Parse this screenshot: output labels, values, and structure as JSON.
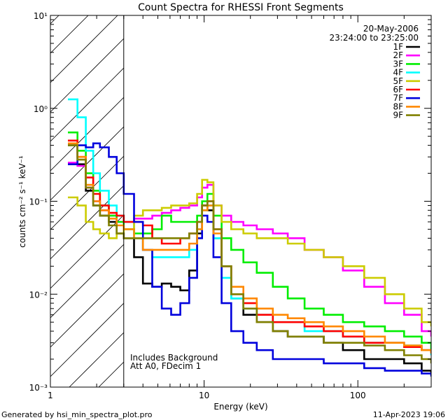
{
  "chart_data": {
    "type": "line",
    "title": "Count Spectra for RHESSI Front Segments",
    "xlabel": "Energy (keV)",
    "ylabel": "counts cm⁻² s⁻¹ keV⁻¹",
    "xscale": "log",
    "yscale": "log",
    "xlim": [
      1,
      300
    ],
    "ylim": [
      0.001,
      10
    ],
    "x_tick_labels": [
      {
        "value": 1,
        "label": "1"
      },
      {
        "value": 10,
        "label": "10"
      },
      {
        "value": 100,
        "label": "100"
      }
    ],
    "y_tick_labels": [
      {
        "exp": -3,
        "label": "10⁻³"
      },
      {
        "exp": -2,
        "label": "10⁻²"
      },
      {
        "exp": -1,
        "label": "10⁻¹"
      },
      {
        "exp": 0,
        "label": "10⁰"
      },
      {
        "exp": 1,
        "label": "10¹"
      }
    ],
    "hatched_region_xmax": 3,
    "legend_header": [
      "20-May-2006",
      "23:24:00 to 23:25:00"
    ],
    "legend_position": "top-right",
    "annotations": [
      "Includes Background",
      "Att A0, FDecim 1"
    ],
    "series": [
      {
        "name": "1F",
        "color": "#000000",
        "points": [
          [
            1.3,
            0.4
          ],
          [
            1.5,
            0.25
          ],
          [
            1.7,
            0.13
          ],
          [
            1.9,
            0.09
          ],
          [
            2.1,
            0.07
          ],
          [
            2.4,
            0.06
          ],
          [
            2.7,
            0.045
          ],
          [
            3.0,
            0.04
          ],
          [
            3.5,
            0.025
          ],
          [
            4.0,
            0.013
          ],
          [
            4.6,
            0.012
          ],
          [
            5.3,
            0.013
          ],
          [
            6.1,
            0.012
          ],
          [
            7.0,
            0.011
          ],
          [
            8.0,
            0.018
          ],
          [
            9.0,
            0.045
          ],
          [
            9.7,
            0.09
          ],
          [
            10.5,
            0.08
          ],
          [
            11.5,
            0.04
          ],
          [
            13,
            0.02
          ],
          [
            15,
            0.009
          ],
          [
            18,
            0.006
          ],
          [
            22,
            0.005
          ],
          [
            28,
            0.004
          ],
          [
            35,
            0.0035
          ],
          [
            45,
            0.0035
          ],
          [
            60,
            0.003
          ],
          [
            80,
            0.0025
          ],
          [
            110,
            0.002
          ],
          [
            150,
            0.002
          ],
          [
            200,
            0.0018
          ],
          [
            260,
            0.0015
          ],
          [
            300,
            0.0014
          ]
        ]
      },
      {
        "name": "2F",
        "color": "#ff00ff",
        "points": [
          [
            1.3,
            0.26
          ],
          [
            1.5,
            0.24
          ],
          [
            1.7,
            0.14
          ],
          [
            1.9,
            0.1
          ],
          [
            2.1,
            0.08
          ],
          [
            2.4,
            0.07
          ],
          [
            2.7,
            0.06
          ],
          [
            3.0,
            0.06
          ],
          [
            3.5,
            0.065
          ],
          [
            4.0,
            0.065
          ],
          [
            4.6,
            0.07
          ],
          [
            5.3,
            0.075
          ],
          [
            6.1,
            0.08
          ],
          [
            7.0,
            0.085
          ],
          [
            8.0,
            0.09
          ],
          [
            9.0,
            0.11
          ],
          [
            9.7,
            0.14
          ],
          [
            10.5,
            0.15
          ],
          [
            11.5,
            0.09
          ],
          [
            13,
            0.07
          ],
          [
            15,
            0.06
          ],
          [
            18,
            0.055
          ],
          [
            22,
            0.05
          ],
          [
            28,
            0.045
          ],
          [
            35,
            0.04
          ],
          [
            45,
            0.03
          ],
          [
            60,
            0.025
          ],
          [
            80,
            0.018
          ],
          [
            110,
            0.012
          ],
          [
            150,
            0.008
          ],
          [
            200,
            0.006
          ],
          [
            260,
            0.004
          ],
          [
            300,
            0.0035
          ]
        ]
      },
      {
        "name": "3F",
        "color": "#00ee00",
        "points": [
          [
            1.3,
            0.55
          ],
          [
            1.5,
            0.35
          ],
          [
            1.7,
            0.2
          ],
          [
            1.9,
            0.13
          ],
          [
            2.1,
            0.09
          ],
          [
            2.4,
            0.07
          ],
          [
            2.7,
            0.06
          ],
          [
            3.0,
            0.05
          ],
          [
            3.5,
            0.045
          ],
          [
            4.0,
            0.045
          ],
          [
            4.6,
            0.05
          ],
          [
            5.3,
            0.07
          ],
          [
            6.1,
            0.06
          ],
          [
            7.0,
            0.06
          ],
          [
            8.0,
            0.06
          ],
          [
            9.0,
            0.07
          ],
          [
            9.7,
            0.1
          ],
          [
            10.5,
            0.12
          ],
          [
            11.5,
            0.07
          ],
          [
            13,
            0.04
          ],
          [
            15,
            0.03
          ],
          [
            18,
            0.022
          ],
          [
            22,
            0.017
          ],
          [
            28,
            0.012
          ],
          [
            35,
            0.009
          ],
          [
            45,
            0.007
          ],
          [
            60,
            0.006
          ],
          [
            80,
            0.005
          ],
          [
            110,
            0.0045
          ],
          [
            150,
            0.004
          ],
          [
            200,
            0.0035
          ],
          [
            260,
            0.003
          ],
          [
            300,
            0.0025
          ]
        ]
      },
      {
        "name": "4F",
        "color": "#00ffff",
        "points": [
          [
            1.3,
            1.25
          ],
          [
            1.5,
            0.8
          ],
          [
            1.7,
            0.35
          ],
          [
            1.9,
            0.2
          ],
          [
            2.1,
            0.13
          ],
          [
            2.4,
            0.09
          ],
          [
            2.7,
            0.07
          ],
          [
            3.0,
            0.06
          ],
          [
            3.5,
            0.04
          ],
          [
            4.0,
            0.03
          ],
          [
            4.6,
            0.025
          ],
          [
            5.3,
            0.025
          ],
          [
            6.1,
            0.025
          ],
          [
            7.0,
            0.025
          ],
          [
            8.0,
            0.03
          ],
          [
            9.0,
            0.05
          ],
          [
            9.7,
            0.08
          ],
          [
            10.5,
            0.09
          ],
          [
            11.5,
            0.04
          ],
          [
            13,
            0.015
          ],
          [
            15,
            0.009
          ],
          [
            18,
            0.007
          ],
          [
            22,
            0.006
          ],
          [
            28,
            0.005
          ],
          [
            35,
            0.005
          ],
          [
            45,
            0.004
          ],
          [
            60,
            0.004
          ],
          [
            80,
            0.0035
          ],
          [
            110,
            0.003
          ],
          [
            150,
            0.003
          ],
          [
            200,
            0.0028
          ],
          [
            260,
            0.0025
          ],
          [
            300,
            0.0022
          ]
        ]
      },
      {
        "name": "5F",
        "color": "#cccc00",
        "points": [
          [
            1.3,
            0.11
          ],
          [
            1.5,
            0.09
          ],
          [
            1.7,
            0.06
          ],
          [
            1.9,
            0.05
          ],
          [
            2.1,
            0.045
          ],
          [
            2.4,
            0.04
          ],
          [
            2.7,
            0.045
          ],
          [
            3.0,
            0.05
          ],
          [
            3.5,
            0.07
          ],
          [
            4.0,
            0.08
          ],
          [
            4.6,
            0.08
          ],
          [
            5.3,
            0.085
          ],
          [
            6.1,
            0.09
          ],
          [
            7.0,
            0.09
          ],
          [
            8.0,
            0.095
          ],
          [
            9.0,
            0.12
          ],
          [
            9.7,
            0.17
          ],
          [
            10.5,
            0.16
          ],
          [
            11.5,
            0.09
          ],
          [
            13,
            0.06
          ],
          [
            15,
            0.05
          ],
          [
            18,
            0.045
          ],
          [
            22,
            0.04
          ],
          [
            28,
            0.04
          ],
          [
            35,
            0.035
          ],
          [
            45,
            0.03
          ],
          [
            60,
            0.025
          ],
          [
            80,
            0.02
          ],
          [
            110,
            0.015
          ],
          [
            150,
            0.01
          ],
          [
            200,
            0.007
          ],
          [
            260,
            0.005
          ],
          [
            300,
            0.0045
          ]
        ]
      },
      {
        "name": "6F",
        "color": "#ff0000",
        "points": [
          [
            1.3,
            0.45
          ],
          [
            1.5,
            0.3
          ],
          [
            1.7,
            0.18
          ],
          [
            1.9,
            0.12
          ],
          [
            2.1,
            0.09
          ],
          [
            2.4,
            0.075
          ],
          [
            2.7,
            0.07
          ],
          [
            3.0,
            0.06
          ],
          [
            3.5,
            0.06
          ],
          [
            4.0,
            0.055
          ],
          [
            4.6,
            0.04
          ],
          [
            5.3,
            0.035
          ],
          [
            6.1,
            0.035
          ],
          [
            7.0,
            0.04
          ],
          [
            8.0,
            0.045
          ],
          [
            9.0,
            0.06
          ],
          [
            9.7,
            0.09
          ],
          [
            10.5,
            0.1
          ],
          [
            11.5,
            0.05
          ],
          [
            13,
            0.02
          ],
          [
            15,
            0.01
          ],
          [
            18,
            0.008
          ],
          [
            22,
            0.006
          ],
          [
            28,
            0.005
          ],
          [
            35,
            0.005
          ],
          [
            45,
            0.0045
          ],
          [
            60,
            0.004
          ],
          [
            80,
            0.0035
          ],
          [
            110,
            0.003
          ],
          [
            150,
            0.003
          ],
          [
            200,
            0.0027
          ],
          [
            260,
            0.0025
          ],
          [
            300,
            0.0023
          ]
        ]
      },
      {
        "name": "7F",
        "color": "#0000dd",
        "points": [
          [
            1.3,
            0.25
          ],
          [
            1.5,
            0.4
          ],
          [
            1.7,
            0.38
          ],
          [
            1.9,
            0.42
          ],
          [
            2.1,
            0.38
          ],
          [
            2.4,
            0.3
          ],
          [
            2.7,
            0.2
          ],
          [
            3.0,
            0.12
          ],
          [
            3.5,
            0.06
          ],
          [
            4.0,
            0.03
          ],
          [
            4.6,
            0.012
          ],
          [
            5.3,
            0.007
          ],
          [
            6.1,
            0.006
          ],
          [
            7.0,
            0.008
          ],
          [
            8.0,
            0.015
          ],
          [
            9.0,
            0.04
          ],
          [
            9.7,
            0.07
          ],
          [
            10.5,
            0.06
          ],
          [
            11.5,
            0.025
          ],
          [
            13,
            0.008
          ],
          [
            15,
            0.004
          ],
          [
            18,
            0.003
          ],
          [
            22,
            0.0025
          ],
          [
            28,
            0.002
          ],
          [
            35,
            0.002
          ],
          [
            45,
            0.002
          ],
          [
            60,
            0.0018
          ],
          [
            80,
            0.0018
          ],
          [
            110,
            0.0016
          ],
          [
            150,
            0.0015
          ],
          [
            200,
            0.0015
          ],
          [
            260,
            0.0014
          ],
          [
            300,
            0.0013
          ]
        ]
      },
      {
        "name": "8F",
        "color": "#ff8800",
        "points": [
          [
            1.3,
            0.42
          ],
          [
            1.5,
            0.3
          ],
          [
            1.7,
            0.15
          ],
          [
            1.9,
            0.1
          ],
          [
            2.1,
            0.08
          ],
          [
            2.4,
            0.065
          ],
          [
            2.7,
            0.055
          ],
          [
            3.0,
            0.05
          ],
          [
            3.5,
            0.04
          ],
          [
            4.0,
            0.03
          ],
          [
            4.6,
            0.03
          ],
          [
            5.3,
            0.03
          ],
          [
            6.1,
            0.03
          ],
          [
            7.0,
            0.03
          ],
          [
            8.0,
            0.035
          ],
          [
            9.0,
            0.05
          ],
          [
            9.7,
            0.08
          ],
          [
            10.5,
            0.09
          ],
          [
            11.5,
            0.045
          ],
          [
            13,
            0.02
          ],
          [
            15,
            0.012
          ],
          [
            18,
            0.009
          ],
          [
            22,
            0.007
          ],
          [
            28,
            0.006
          ],
          [
            35,
            0.0055
          ],
          [
            45,
            0.005
          ],
          [
            60,
            0.0045
          ],
          [
            80,
            0.004
          ],
          [
            110,
            0.0035
          ],
          [
            150,
            0.003
          ],
          [
            200,
            0.0028
          ],
          [
            260,
            0.0025
          ],
          [
            300,
            0.0023
          ]
        ]
      },
      {
        "name": "9F",
        "color": "#808000",
        "points": [
          [
            1.3,
            0.4
          ],
          [
            1.5,
            0.28
          ],
          [
            1.7,
            0.14
          ],
          [
            1.9,
            0.09
          ],
          [
            2.1,
            0.07
          ],
          [
            2.4,
            0.055
          ],
          [
            2.7,
            0.045
          ],
          [
            3.0,
            0.04
          ],
          [
            3.5,
            0.04
          ],
          [
            4.0,
            0.04
          ],
          [
            4.6,
            0.04
          ],
          [
            5.3,
            0.04
          ],
          [
            6.1,
            0.04
          ],
          [
            7.0,
            0.04
          ],
          [
            8.0,
            0.045
          ],
          [
            9.0,
            0.06
          ],
          [
            9.7,
            0.09
          ],
          [
            10.5,
            0.1
          ],
          [
            11.5,
            0.05
          ],
          [
            13,
            0.02
          ],
          [
            15,
            0.01
          ],
          [
            18,
            0.007
          ],
          [
            22,
            0.005
          ],
          [
            28,
            0.004
          ],
          [
            35,
            0.0035
          ],
          [
            45,
            0.0035
          ],
          [
            60,
            0.003
          ],
          [
            80,
            0.003
          ],
          [
            110,
            0.0028
          ],
          [
            150,
            0.0025
          ],
          [
            200,
            0.0022
          ],
          [
            260,
            0.002
          ],
          [
            300,
            0.0018
          ]
        ]
      }
    ]
  },
  "footer": {
    "generated_by": "Generated by hsi_min_spectra_plot.pro",
    "date": "11-Apr-2023 19:06"
  }
}
